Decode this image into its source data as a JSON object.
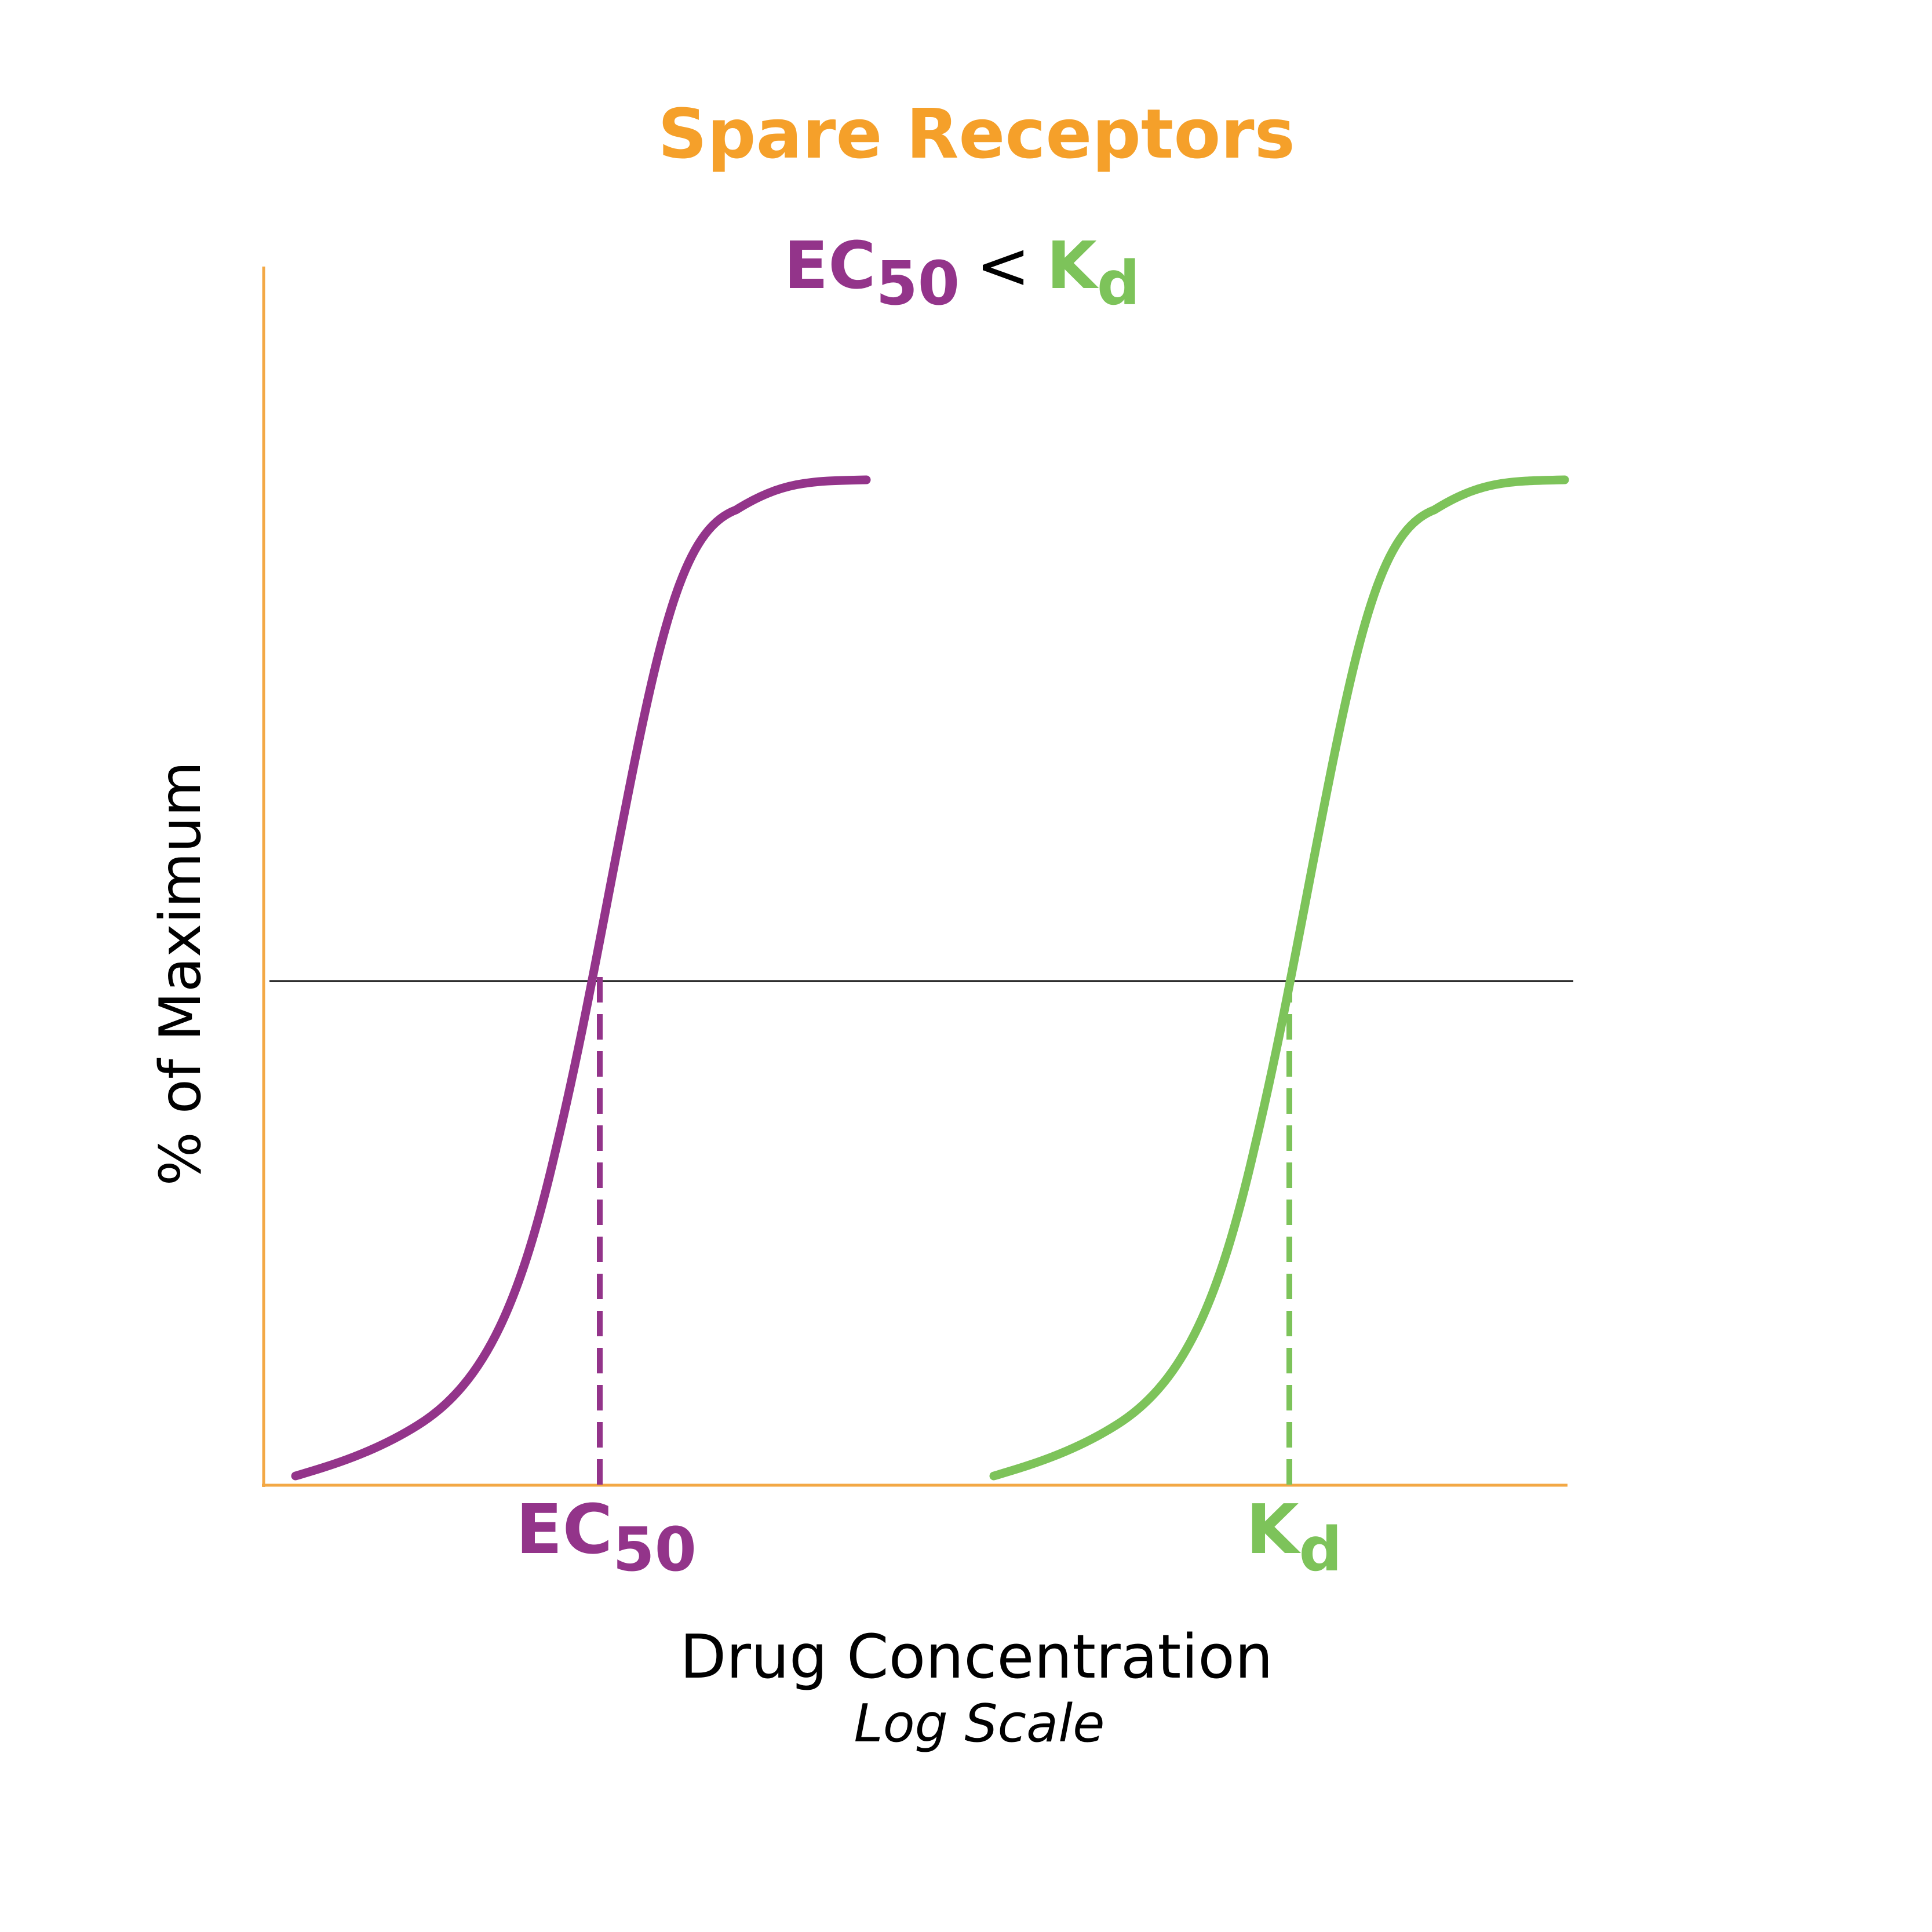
{
  "title": "Spare Receptors",
  "relation": {
    "left_main": "EC",
    "left_sub": "50",
    "operator": "<",
    "right_main": "K",
    "right_sub": "d"
  },
  "y_axis_label": "% of Maximum",
  "x_axis_label": "Drug Concentration",
  "x_axis_sublabel": "Log Scale",
  "markers": {
    "ec50": {
      "main": "EC",
      "sub": "50"
    },
    "kd": {
      "main": "K",
      "sub": "d"
    }
  },
  "colors": {
    "title": "#f5a02a",
    "axes": "#f3a845",
    "ec50": "#93348a",
    "kd": "#7dc35a",
    "half_line": "#111111",
    "text": "#000000"
  },
  "chart_data": {
    "type": "line",
    "x_scale": "log",
    "series": [
      {
        "name": "EC50",
        "marker": "ec50"
      },
      {
        "name": "Kd",
        "marker": "kd"
      }
    ]
  }
}
